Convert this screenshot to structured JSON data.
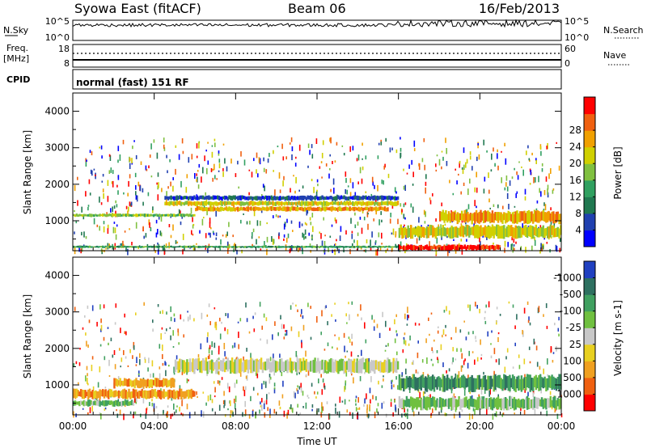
{
  "header": {
    "station": "Syowa East (fitACF)",
    "beam": "Beam 06",
    "date": "16/Feb/2013"
  },
  "top_panels": {
    "nsky_label": "N.Sky",
    "nsky_ticks": [
      "10^5",
      "10^0"
    ],
    "nsearch_label": "N.Search",
    "nsearch_ticks": [
      "10^5",
      "10^0"
    ],
    "freq_label": "Freq.",
    "freq_unit": "[MHz]",
    "freq_ticks": [
      "18",
      "8"
    ],
    "nave_label": "Nave",
    "nave_ticks": [
      "60",
      "0"
    ],
    "cpid_label": "CPID",
    "cpid_value": "normal (fast) 151 RF"
  },
  "chart_data": [
    {
      "type": "heatmap",
      "name": "power",
      "ylabel": "Slant Range [km]",
      "ylim": [
        180,
        4500
      ],
      "yticks": [
        1000,
        2000,
        3000,
        4000
      ],
      "xlim": [
        0,
        24
      ],
      "colorbar": {
        "label": "Power [dB]",
        "ticks": [
          "4",
          "8",
          "12",
          "16",
          "20",
          "24",
          "28"
        ],
        "colors": [
          "#0000ff",
          "#2040b0",
          "#207850",
          "#30a060",
          "#80c040",
          "#d0d000",
          "#f0a000",
          "#f06010",
          "#ff0000"
        ]
      },
      "bands": [
        {
          "t0": 0.0,
          "t1": 6.0,
          "r0": 1100,
          "r1": 1200,
          "level": 4
        },
        {
          "t0": 0.0,
          "t1": 16.0,
          "r0": 250,
          "r1": 320,
          "level": 3
        },
        {
          "t0": 4.5,
          "t1": 16.0,
          "r0": 1550,
          "r1": 1700,
          "level": 1
        },
        {
          "t0": 4.5,
          "t1": 16.0,
          "r0": 1400,
          "r1": 1550,
          "level": 5
        },
        {
          "t0": 6.0,
          "t1": 15.5,
          "r0": 1250,
          "r1": 1400,
          "level": 6
        },
        {
          "t0": 16.0,
          "t1": 21.0,
          "r0": 180,
          "r1": 350,
          "level": 8
        },
        {
          "t0": 18.0,
          "t1": 24.0,
          "r0": 900,
          "r1": 1300,
          "level": 6
        },
        {
          "t0": 16.0,
          "t1": 24.0,
          "r0": 500,
          "r1": 900,
          "level": 5
        }
      ]
    },
    {
      "type": "heatmap",
      "name": "velocity",
      "xlabel": "Time UT",
      "ylabel": "Slant Range [km]",
      "ylim": [
        180,
        4500
      ],
      "yticks": [
        1000,
        2000,
        3000,
        4000
      ],
      "xlim": [
        0,
        24
      ],
      "xticks": [
        "00:00",
        "04:00",
        "08:00",
        "12:00",
        "16:00",
        "20:00",
        "00:00"
      ],
      "colorbar": {
        "label": "Velocity [m s-1]",
        "ticks": [
          "1000",
          "500",
          "100",
          "25",
          "-25",
          "-100",
          "-500",
          "-1000"
        ],
        "colors": [
          "#2040c0",
          "#2e7060",
          "#40a060",
          "#70c040",
          "#c8c8c8",
          "#e8d020",
          "#f0a020",
          "#f06010",
          "#ff0000"
        ]
      },
      "bands": [
        {
          "t0": 5.0,
          "t1": 16.0,
          "r0": 1300,
          "r1": 1750,
          "level": 4
        },
        {
          "t0": 0.0,
          "t1": 6.0,
          "r0": 600,
          "r1": 900,
          "level": 6
        },
        {
          "t0": 2.0,
          "t1": 5.0,
          "r0": 900,
          "r1": 1200,
          "level": 6
        },
        {
          "t0": 16.0,
          "t1": 24.0,
          "r0": 800,
          "r1": 1300,
          "level": 2
        },
        {
          "t0": 16.0,
          "t1": 24.0,
          "r0": 300,
          "r1": 700,
          "level": 3
        },
        {
          "t0": 0.0,
          "t1": 3.0,
          "r0": 400,
          "r1": 600,
          "level": 3
        }
      ]
    }
  ]
}
